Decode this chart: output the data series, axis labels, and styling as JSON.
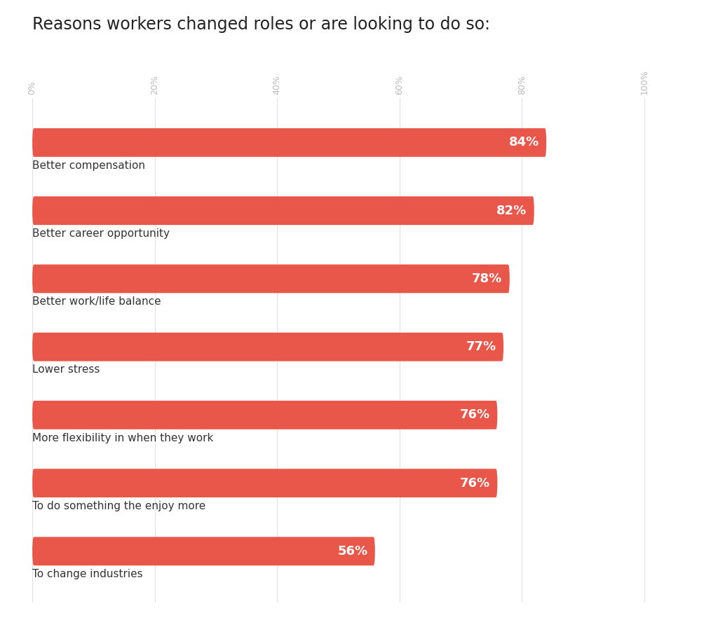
{
  "title": "Reasons workers changed roles or are looking to do so:",
  "categories": [
    "Better compensation",
    "Better career opportunity",
    "Better work/life balance",
    "Lower stress",
    "More flexibility in when they work",
    "To do something the enjoy more",
    "To change industries"
  ],
  "values": [
    84,
    82,
    78,
    77,
    76,
    76,
    56
  ],
  "bar_color": "#E8574A",
  "label_color": "#ffffff",
  "category_label_color": "#333333",
  "title_color": "#222222",
  "background_color": "#ffffff",
  "xlim": [
    0,
    105
  ],
  "xticks": [
    0,
    20,
    40,
    60,
    80,
    100
  ],
  "xtick_labels": [
    "0%",
    "20%",
    "40%",
    "60%",
    "80%",
    "100%"
  ],
  "title_fontsize": 17,
  "bar_label_fontsize": 13,
  "category_fontsize": 11,
  "tick_fontsize": 9,
  "bar_height": 0.42,
  "rounding_size": 0.25
}
